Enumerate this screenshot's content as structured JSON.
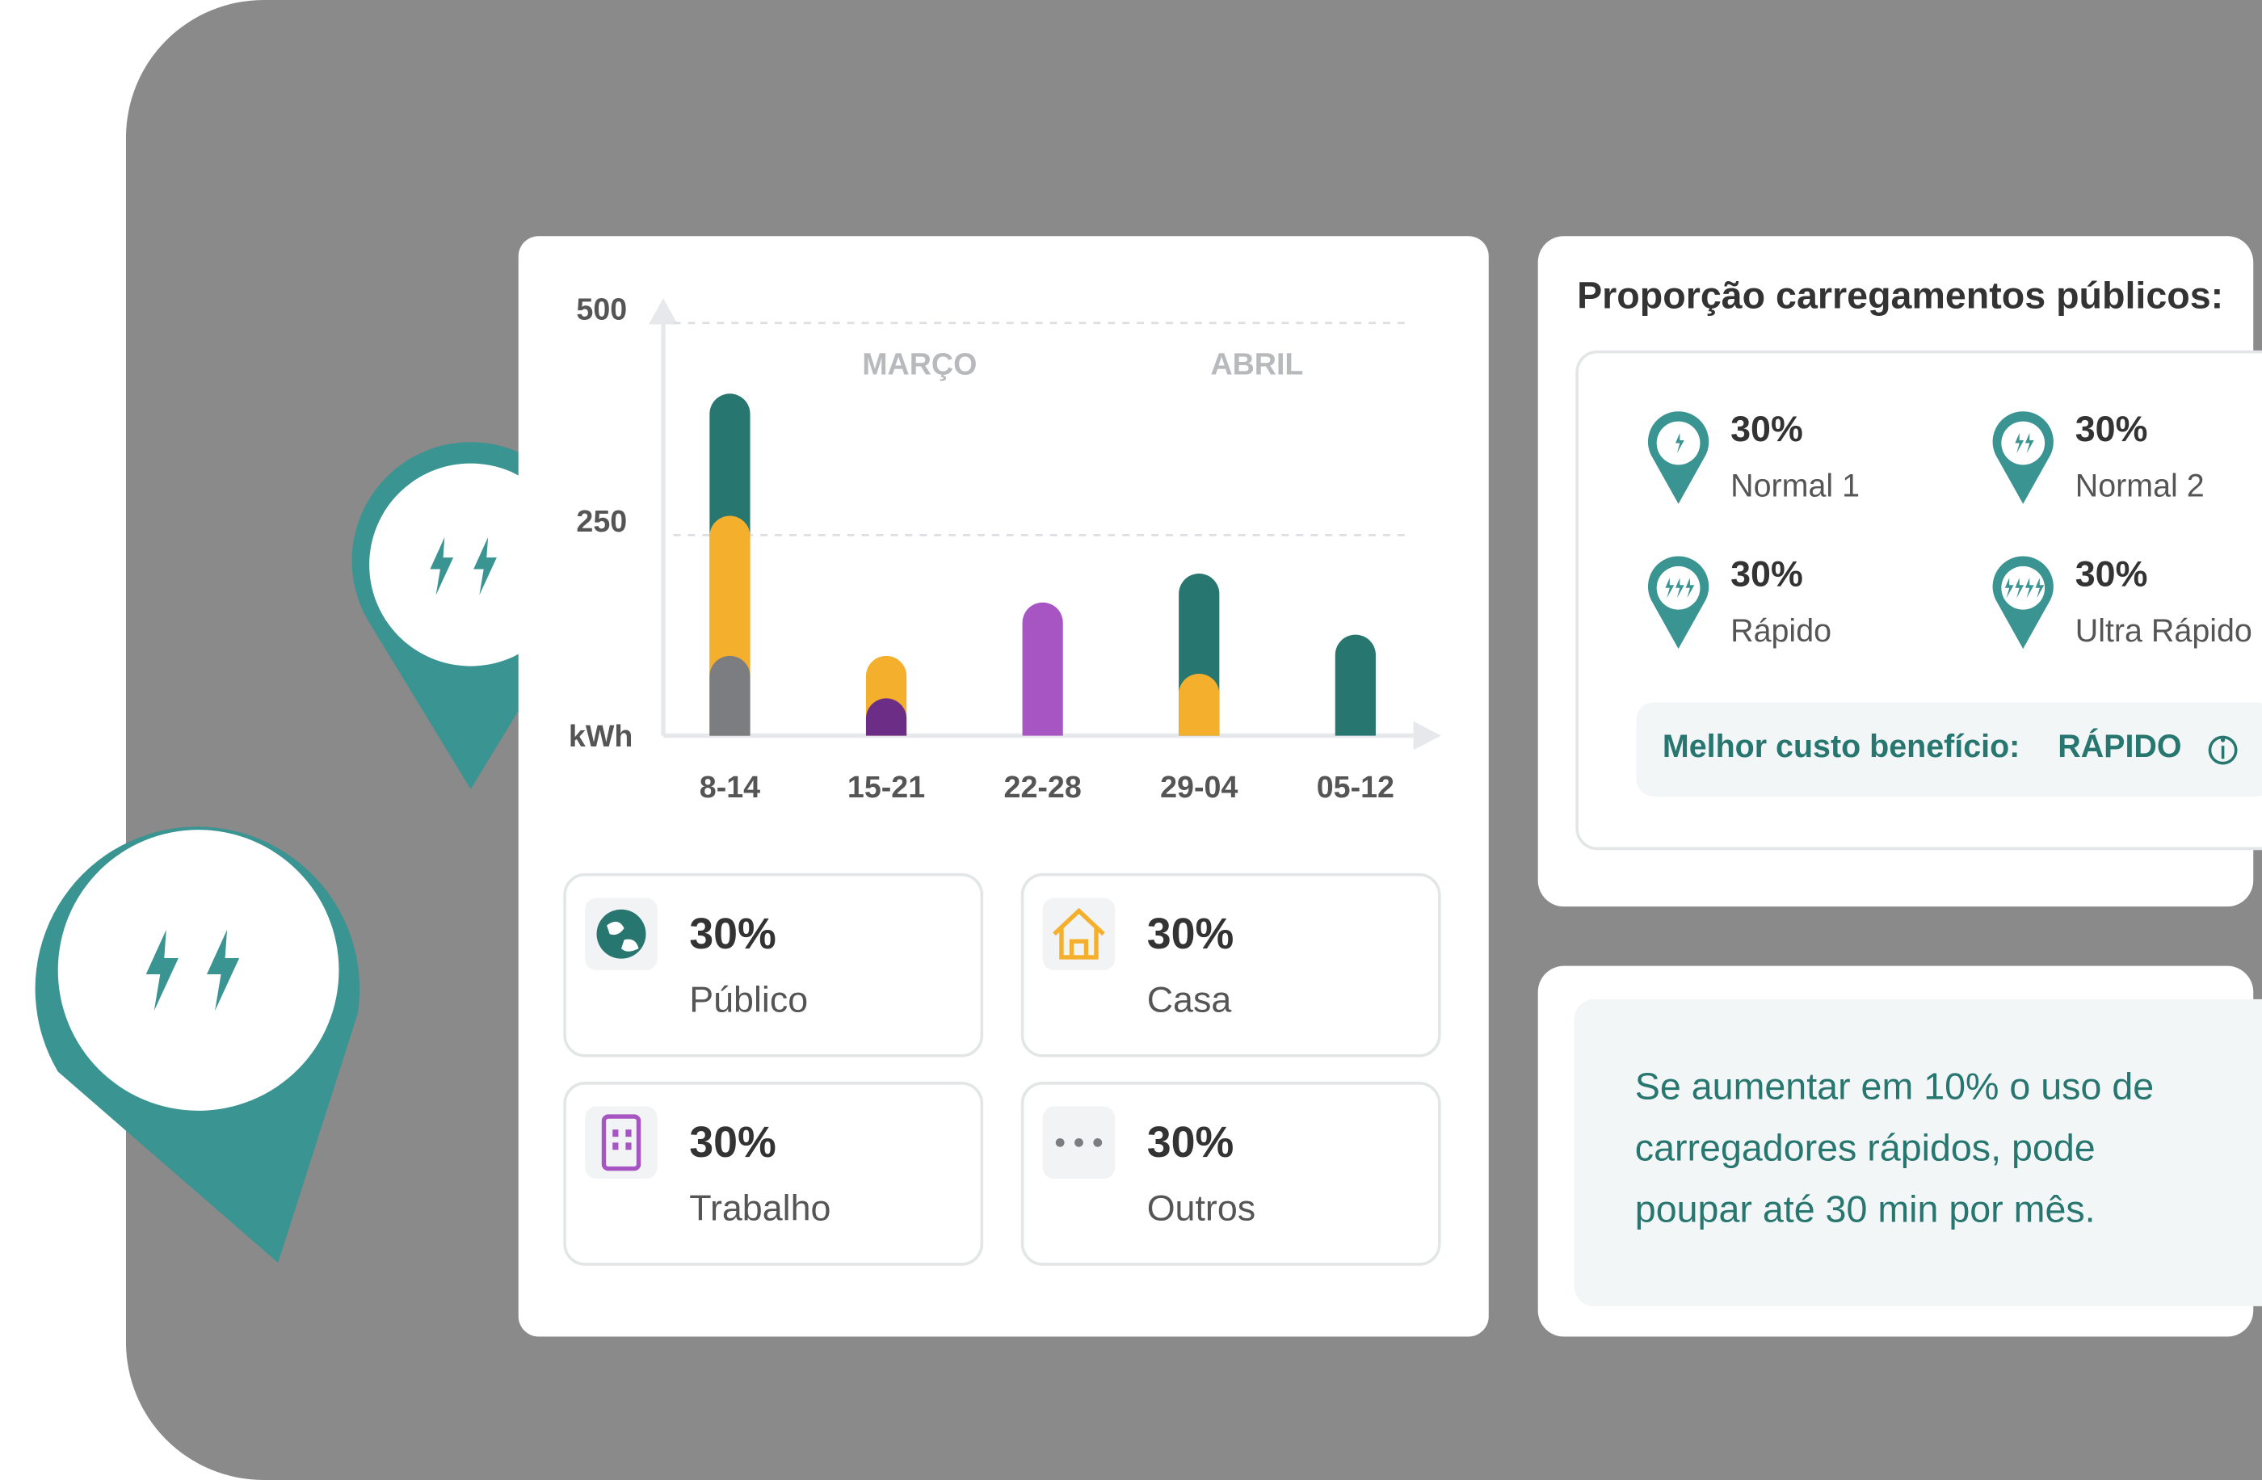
{
  "chart_data": {
    "type": "bar",
    "stacked": true,
    "categories": [
      "8-14",
      "15-21",
      "22-28",
      "29-04",
      "05-12"
    ],
    "series": [
      {
        "color": "#7b7d80",
        "values": [
          94,
          null,
          null,
          null,
          null
        ]
      },
      {
        "color": "#6b2d85",
        "values": [
          null,
          44,
          null,
          null,
          null
        ]
      },
      {
        "color": "#a855c4",
        "values": [
          null,
          null,
          157,
          null,
          null
        ]
      },
      {
        "color": "#f4b02c",
        "values": [
          165,
          50,
          null,
          73,
          null
        ]
      },
      {
        "color": "#277670",
        "values": [
          144,
          null,
          null,
          118,
          119
        ]
      }
    ],
    "ylim": [
      0,
      500
    ],
    "yticks": [
      250,
      500
    ],
    "y_unit": "kWh",
    "grid": true,
    "annotations": [
      "MARÇO",
      "ABRIL"
    ]
  },
  "summary_cards": [
    {
      "value": "30%",
      "label": "Público"
    },
    {
      "value": "30%",
      "label": "Casa"
    },
    {
      "value": "30%",
      "label": "Trabalho"
    },
    {
      "value": "30%",
      "label": "Outros"
    }
  ],
  "public_panel": {
    "title": "Proporção carregamentos públicos:",
    "items": [
      {
        "value": "30%",
        "label": "Normal 1"
      },
      {
        "value": "30%",
        "label": "Normal 2"
      },
      {
        "value": "30%",
        "label": "Rápido"
      },
      {
        "value": "30%",
        "label": "Ultra Rápido"
      }
    ],
    "best_label": "Melhor custo benefício:",
    "best_value": "RÁPIDO"
  },
  "tip": {
    "lines": [
      "Se aumentar em 10% o uso de",
      "carregadores rápidos, pode",
      "poupar até 30 min por mês."
    ]
  }
}
